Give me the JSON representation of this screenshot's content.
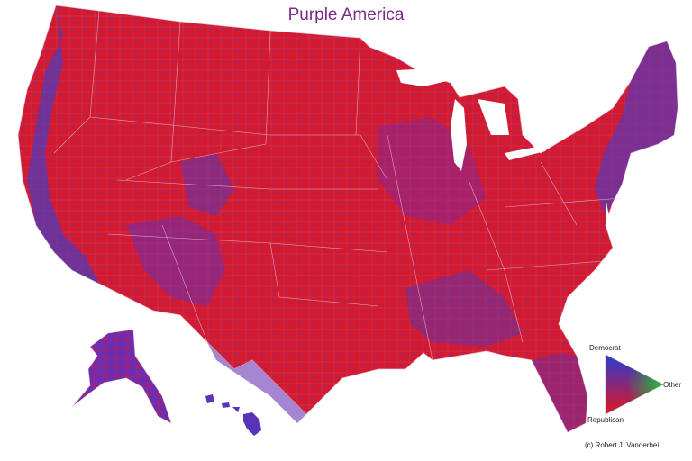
{
  "title": "Purple America",
  "legend": {
    "democrat_label": "Democrat",
    "republican_label": "Republican",
    "other_label": "Other",
    "democrat_color": "#2a3bd6",
    "republican_color": "#e0161e",
    "other_color": "#1fbf3a"
  },
  "credit": "(c) Robert J. Vanderbei",
  "colors": {
    "red": "#e0161e",
    "purple": "#8a2a9a",
    "blue": "#3a3cc8",
    "state_border": "#d9b8c8",
    "title": "#7a2a86"
  }
}
